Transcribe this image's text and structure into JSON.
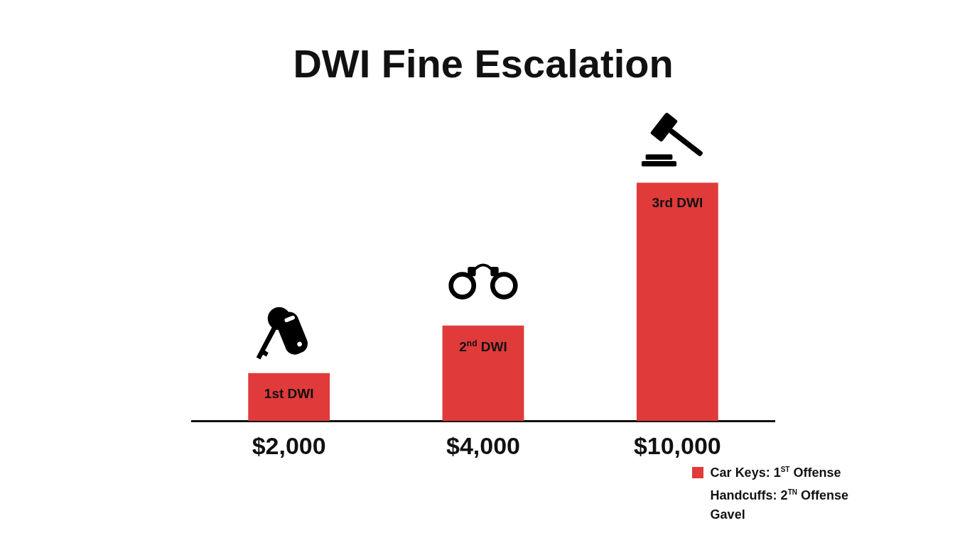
{
  "chart_data": {
    "type": "bar",
    "title": "DWI Fine Escalation",
    "categories": [
      "1st DWI",
      "2$^{nd}$ DWI",
      "3rd DWI"
    ],
    "series": [
      {
        "name": "Car Keys: 1$^{ST}$ Offense",
        "color": "#e03a3a",
        "values": [
          2000,
          4000,
          10000
        ],
        "value_labels": [
          "$2,000",
          "$4,000",
          "$10,000"
        ]
      }
    ],
    "annotations": [
      "Handcuffs: 2$^{TN}$ Offense",
      "Gavel"
    ],
    "legend": "bottom right",
    "grid": false,
    "tick_labels": false
  }
}
